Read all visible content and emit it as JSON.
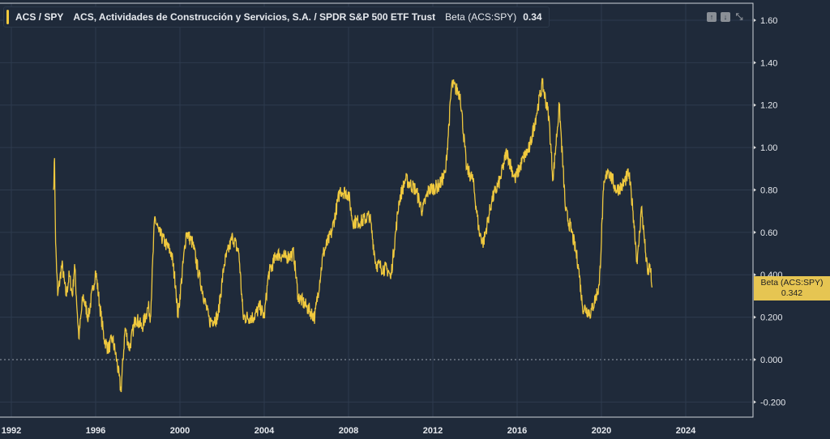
{
  "legend": {
    "symbol": "ACS / SPY",
    "name": "ACS, Actividades de Construcción y Servicios, S.A. / SPDR S&P 500 ETF Trust",
    "indicator": "Beta (ACS:SPY)",
    "value": "0.34"
  },
  "toolbar": {
    "up_icon": "arrow-up-icon",
    "down_icon": "arrow-down-icon",
    "collapse_icon": "collapse-icon"
  },
  "last_tag": {
    "label": "Beta (ACS:SPY)",
    "value": "0.342"
  },
  "colors": {
    "line": "#f0c93e",
    "background": "#1f2a3a",
    "grid": "#2e3b4e"
  },
  "chart_data": {
    "type": "line",
    "title": "Beta (ACS:SPY)",
    "ylim": [
      -0.26,
      1.64
    ],
    "xlim": [
      1991.8,
      2026.3
    ],
    "yticks": [
      "-0.200",
      "0.000",
      "0.200",
      "0.400",
      "0.60",
      "0.80",
      "1.00",
      "1.20",
      "1.40",
      "1.60"
    ],
    "ytick_values": [
      -0.2,
      0,
      0.2,
      0.4,
      0.6,
      0.8,
      1.0,
      1.2,
      1.4,
      1.6
    ],
    "xticks": [
      "1992",
      "1996",
      "2000",
      "2004",
      "2008",
      "2012",
      "2016",
      "2020",
      "2024"
    ],
    "xtick_values": [
      1992,
      1996,
      2000,
      2004,
      2008,
      2012,
      2016,
      2020,
      2024
    ],
    "series": [
      {
        "name": "Beta (ACS:SPY)",
        "x": [
          1994.0,
          1994.05,
          1994.1,
          1994.2,
          1994.4,
          1994.6,
          1994.75,
          1994.9,
          1995.0,
          1995.2,
          1995.4,
          1995.65,
          1995.9,
          1996.0,
          1996.2,
          1996.4,
          1996.6,
          1996.8,
          1997.0,
          1997.2,
          1997.4,
          1997.6,
          1997.9,
          1998.2,
          1998.5,
          1998.6,
          1998.8,
          1999.0,
          1999.3,
          1999.6,
          1999.8,
          1999.9,
          2000.3,
          2000.6,
          2000.9,
          2001.4,
          2001.8,
          2002.1,
          2002.5,
          2002.8,
          2003.0,
          2003.5,
          2003.8,
          2004.0,
          2004.2,
          2004.6,
          2005.0,
          2005.4,
          2005.6,
          2006.0,
          2006.4,
          2006.8,
          2007.2,
          2007.6,
          2008.0,
          2008.2,
          2008.6,
          2009.0,
          2009.3,
          2009.9,
          2010.0,
          2010.4,
          2010.7,
          2011.2,
          2011.5,
          2011.8,
          2012.3,
          2012.6,
          2012.9,
          2013.3,
          2013.6,
          2013.9,
          2014.2,
          2014.4,
          2014.8,
          2015.2,
          2015.5,
          2015.9,
          2016.3,
          2016.6,
          2016.9,
          2017.2,
          2017.5,
          2017.7,
          2018.0,
          2018.3,
          2018.6,
          2018.9,
          2019.1,
          2019.5,
          2019.9,
          2020.1,
          2020.3,
          2020.7,
          2021.0,
          2021.3,
          2021.5,
          2021.7,
          2021.9,
          2022.1,
          2022.2,
          2022.3,
          2022.4
        ],
        "values": [
          0.8,
          0.95,
          0.55,
          0.3,
          0.45,
          0.3,
          0.4,
          0.3,
          0.45,
          0.1,
          0.3,
          0.2,
          0.35,
          0.42,
          0.25,
          0.1,
          0.05,
          0.1,
          0.0,
          -0.15,
          0.15,
          0.05,
          0.2,
          0.15,
          0.25,
          0.2,
          0.67,
          0.6,
          0.55,
          0.5,
          0.35,
          0.2,
          0.6,
          0.55,
          0.4,
          0.18,
          0.2,
          0.45,
          0.58,
          0.5,
          0.2,
          0.2,
          0.25,
          0.2,
          0.4,
          0.5,
          0.48,
          0.5,
          0.3,
          0.25,
          0.2,
          0.5,
          0.6,
          0.8,
          0.78,
          0.65,
          0.65,
          0.68,
          0.45,
          0.42,
          0.38,
          0.75,
          0.85,
          0.8,
          0.7,
          0.8,
          0.82,
          0.88,
          1.3,
          1.25,
          0.9,
          0.85,
          0.6,
          0.55,
          0.75,
          0.85,
          0.98,
          0.85,
          0.95,
          1.0,
          1.15,
          1.3,
          1.15,
          0.85,
          1.2,
          0.7,
          0.6,
          0.45,
          0.25,
          0.22,
          0.35,
          0.8,
          0.9,
          0.8,
          0.82,
          0.88,
          0.7,
          0.45,
          0.72,
          0.5,
          0.4,
          0.45,
          0.34
        ]
      }
    ]
  }
}
